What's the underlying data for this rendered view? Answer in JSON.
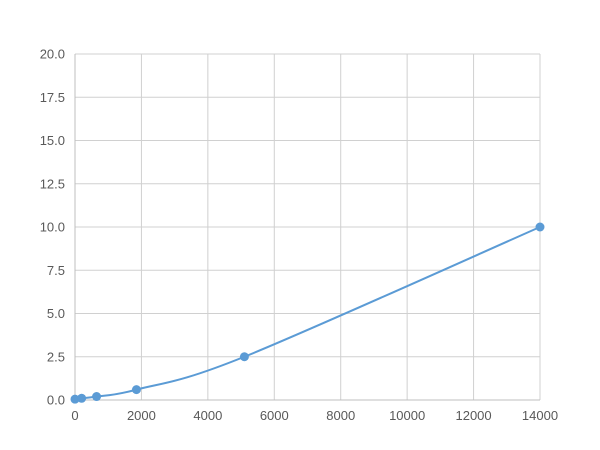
{
  "chart_data": {
    "type": "line",
    "title": "",
    "xlabel": "",
    "ylabel": "",
    "xlim": [
      0,
      14000
    ],
    "ylim": [
      0,
      20
    ],
    "xticks": [
      "0",
      "2000",
      "4000",
      "6000",
      "8000",
      "10000",
      "12000",
      "14000"
    ],
    "yticks": [
      "0.0",
      "2.5",
      "5.0",
      "7.5",
      "10.0",
      "12.5",
      "15.0",
      "17.5",
      "20.0"
    ],
    "grid": true,
    "smooth": true,
    "color": "#5b9bd5",
    "series": [
      {
        "x": [
          0,
          200,
          650,
          1850,
          5100,
          14000
        ],
        "y": [
          0.05,
          0.1,
          0.2,
          0.6,
          2.5,
          10.0
        ]
      }
    ]
  }
}
